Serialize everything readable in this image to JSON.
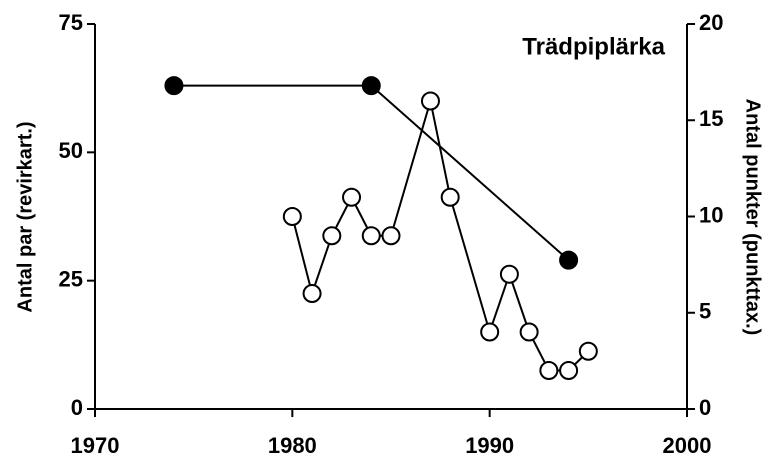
{
  "chart_data": {
    "type": "line",
    "title": "Trädpiplärka",
    "ylabel": "Antal par (revirkart.)",
    "y2label": "Antal punkter (punkttax.)",
    "xlim": [
      1970,
      2000
    ],
    "xticks": [
      1970,
      1980,
      1990,
      2000
    ],
    "ylim": [
      0,
      75
    ],
    "yticks": [
      0,
      25,
      50,
      75
    ],
    "y2lim": [
      0,
      20
    ],
    "y2ticks": [
      0,
      5,
      10,
      15,
      20
    ],
    "series": [
      {
        "color": "#000000",
        "marker_fill": "#000000",
        "axis": "y",
        "x": [
          1974,
          1984,
          1994
        ],
        "values": [
          63,
          63,
          29
        ]
      },
      {
        "color": "#000000",
        "marker_fill": "#ffffff",
        "axis": "y2",
        "x": [
          1980,
          1981,
          1982,
          1983,
          1984,
          1985,
          1987,
          1988,
          1990,
          1991,
          1992,
          1993,
          1994,
          1995
        ],
        "values": [
          10,
          6,
          9,
          11,
          9,
          9,
          16,
          11,
          4,
          7,
          4,
          2,
          2,
          3
        ]
      }
    ]
  }
}
